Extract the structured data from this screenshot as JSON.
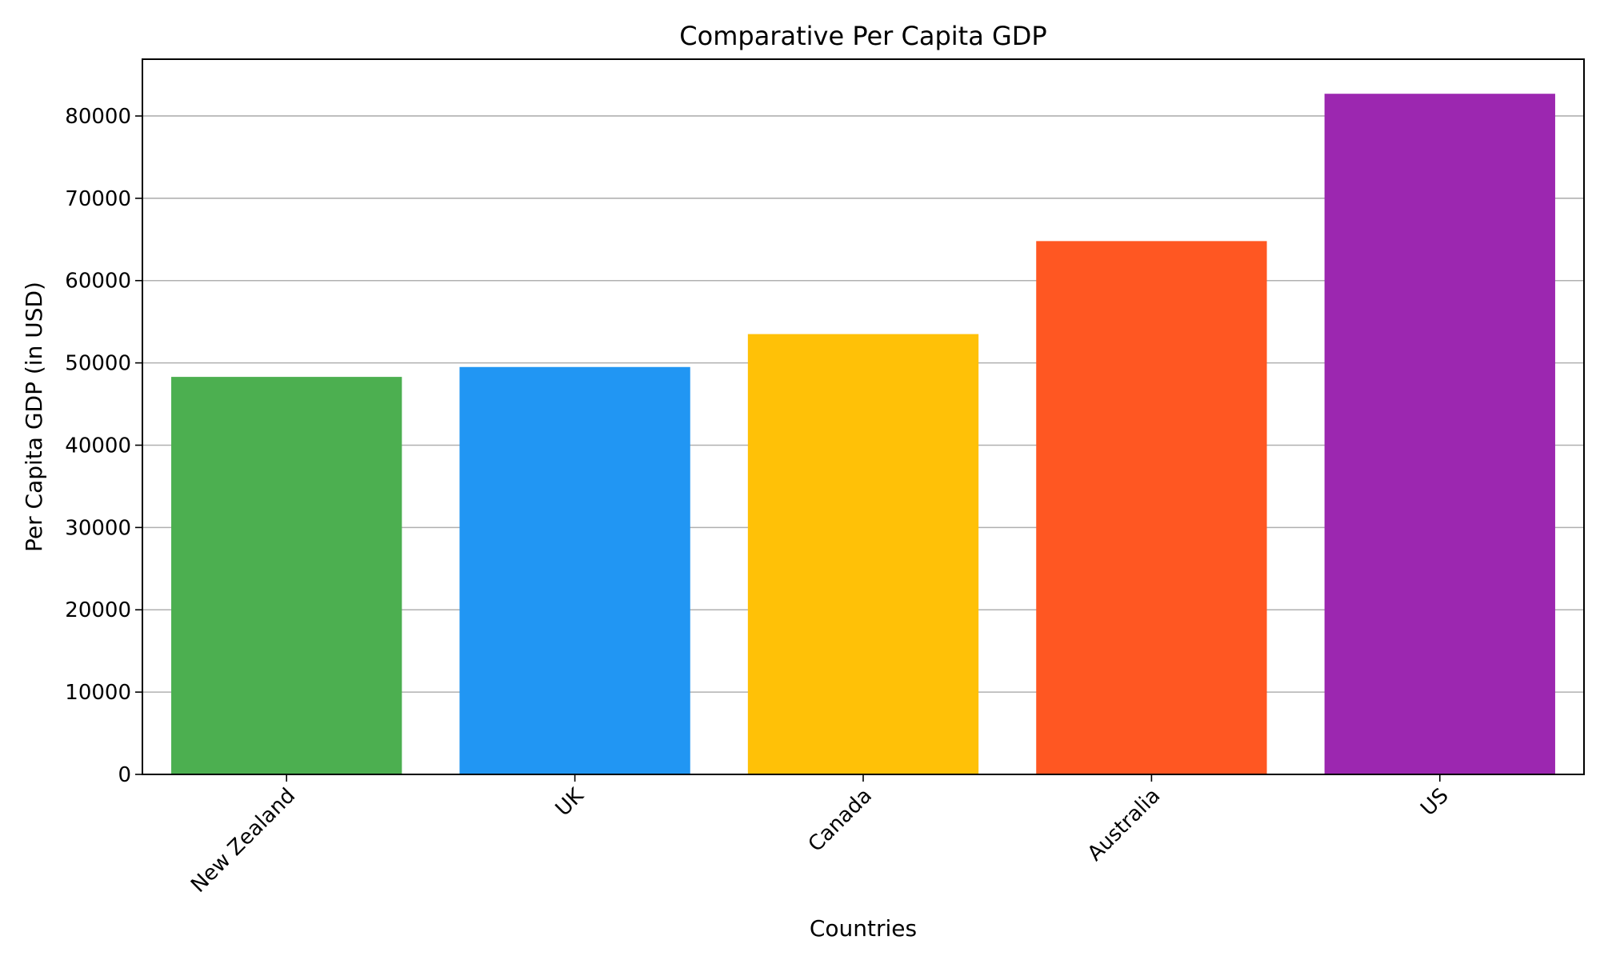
{
  "chart_data": {
    "type": "bar",
    "title": "Comparative Per Capita GDP",
    "xlabel": "Countries",
    "ylabel": "Per Capita GDP (in USD)",
    "categories": [
      "New Zealand",
      "UK",
      "Canada",
      "Australia",
      "US"
    ],
    "values": [
      48300,
      49500,
      53500,
      64800,
      82700
    ],
    "colors": [
      "#4caf50",
      "#2196f3",
      "#ffc107",
      "#ff5722",
      "#9c27b0"
    ],
    "ylim": [
      0,
      86900
    ],
    "yticks": [
      0,
      10000,
      20000,
      30000,
      40000,
      50000,
      60000,
      70000,
      80000
    ],
    "grid": "horizontal",
    "grid_color": "#b0b0b0",
    "legend": "none"
  }
}
